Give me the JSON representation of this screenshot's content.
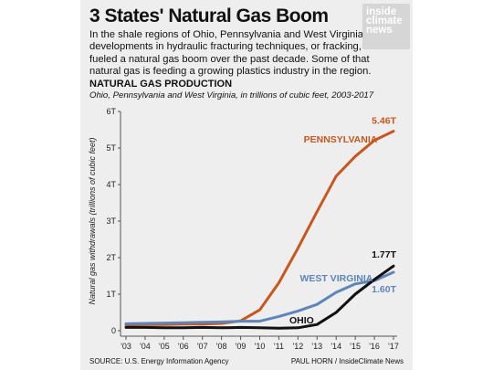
{
  "title": "3 States' Natural Gas Boom",
  "intro": "In the shale regions of Ohio, Pennsylvania and West Virginia, developments in hydraulic fracturing techniques, or fracking, fueled a natural gas boom over the past decade. Some of that natural gas is feeding a growing plastics industry in the region.",
  "logo": [
    "inside",
    "climate",
    "news"
  ],
  "footer": {
    "source": "SOURCE: U.S. Energy Information Agency",
    "credit": "PAUL HORN / InsideClimate News"
  },
  "colors": {
    "pennsylvania": "#c8571f",
    "west_virginia": "#5f85b9",
    "ohio": "#111111"
  },
  "chart_data": {
    "type": "line",
    "title": "NATURAL GAS PRODUCTION",
    "subtitle": "Ohio, Pennsylvania and West Virginia, in trillions of cubic feet, 2003-2017",
    "ylabel": "Natural gas withdrawals (trillions of cubic feet)",
    "xlabel": "",
    "x": [
      "'03",
      "'04",
      "'05",
      "'06",
      "'07",
      "'08",
      "'09",
      "'10",
      "'11",
      "'12",
      "'13",
      "'14",
      "'15",
      "'16",
      "'17"
    ],
    "yticks": [
      "0",
      "1T",
      "2T",
      "3T",
      "4T",
      "5T",
      "6T"
    ],
    "ylim": [
      0,
      6
    ],
    "grid": false,
    "series": [
      {
        "name": "PENNSYLVANIA",
        "key": "pennsylvania",
        "end_label": "5.46T",
        "values": [
          0.16,
          0.17,
          0.17,
          0.18,
          0.18,
          0.2,
          0.27,
          0.57,
          1.31,
          2.26,
          3.26,
          4.23,
          4.77,
          5.21,
          5.46
        ]
      },
      {
        "name": "WEST VIRGINIA",
        "key": "west_virginia",
        "end_label": "1.60T",
        "values": [
          0.19,
          0.2,
          0.21,
          0.22,
          0.23,
          0.24,
          0.26,
          0.26,
          0.39,
          0.54,
          0.72,
          1.05,
          1.28,
          1.37,
          1.6
        ]
      },
      {
        "name": "OHIO",
        "key": "ohio",
        "end_label": "1.77T",
        "values": [
          0.09,
          0.09,
          0.08,
          0.08,
          0.09,
          0.08,
          0.09,
          0.08,
          0.07,
          0.08,
          0.17,
          0.5,
          1.0,
          1.4,
          1.77
        ]
      }
    ]
  }
}
